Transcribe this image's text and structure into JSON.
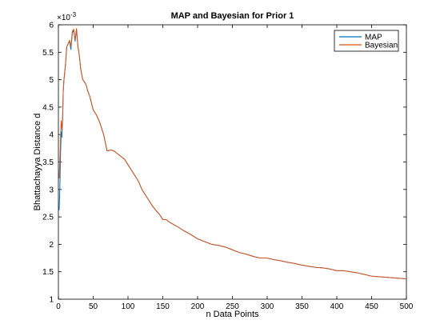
{
  "chart_data": {
    "type": "line",
    "title": "MAP and Bayesian for Prior 1",
    "xlabel": "n Data Points",
    "ylabel": "Bhattachayya Distance d",
    "y_exponent_label": "×10",
    "y_exponent": "-3",
    "xlim": [
      0,
      500
    ],
    "ylim": [
      1,
      6
    ],
    "x_ticks": [
      0,
      50,
      100,
      150,
      200,
      250,
      300,
      350,
      400,
      450,
      500
    ],
    "y_ticks": [
      1,
      1.5,
      2,
      2.5,
      3,
      3.5,
      4,
      4.5,
      5,
      5.5,
      6
    ],
    "y_tick_labels": [
      "1",
      "1.5",
      "2",
      "2.5",
      "3",
      "3.5",
      "4",
      "4.5",
      "5",
      "5.5",
      "6"
    ],
    "grid": false,
    "legend_position": "top-right",
    "series": [
      {
        "name": "MAP",
        "color": "#0072BD",
        "x": [
          1,
          2,
          3,
          4,
          5,
          6,
          7,
          8,
          10,
          12,
          14,
          16,
          18,
          20,
          22,
          24,
          26,
          28,
          30,
          32,
          35,
          38,
          40,
          42,
          45,
          48,
          50,
          55,
          60,
          65,
          70,
          75,
          80,
          85,
          90,
          95,
          100,
          105,
          110,
          115,
          120,
          125,
          130,
          135,
          140,
          145,
          150,
          155,
          160,
          170,
          180,
          190,
          200,
          210,
          220,
          230,
          240,
          250,
          260,
          270,
          280,
          290,
          300,
          310,
          320,
          330,
          340,
          350,
          360,
          370,
          380,
          390,
          400,
          410,
          420,
          430,
          440,
          450,
          460,
          470,
          480,
          490,
          500
        ],
        "values": [
          2.62,
          2.95,
          3.6,
          4.05,
          3.95,
          4.25,
          4.8,
          5.0,
          5.25,
          5.6,
          5.65,
          5.7,
          5.55,
          5.85,
          5.9,
          5.7,
          5.92,
          5.6,
          5.45,
          5.2,
          5.0,
          4.95,
          4.9,
          4.8,
          4.7,
          4.55,
          4.45,
          4.35,
          4.2,
          4.0,
          3.7,
          3.72,
          3.7,
          3.65,
          3.6,
          3.55,
          3.45,
          3.35,
          3.25,
          3.15,
          3.0,
          2.9,
          2.8,
          2.7,
          2.62,
          2.55,
          2.45,
          2.45,
          2.4,
          2.33,
          2.25,
          2.18,
          2.1,
          2.05,
          2.0,
          1.98,
          1.95,
          1.9,
          1.85,
          1.82,
          1.78,
          1.75,
          1.75,
          1.72,
          1.7,
          1.67,
          1.65,
          1.62,
          1.6,
          1.58,
          1.57,
          1.55,
          1.52,
          1.52,
          1.5,
          1.48,
          1.45,
          1.42,
          1.41,
          1.4,
          1.39,
          1.38,
          1.37
        ]
      },
      {
        "name": "Bayesian",
        "color": "#D95319",
        "x": [
          1,
          2,
          3,
          4,
          5,
          6,
          7,
          8,
          10,
          12,
          14,
          16,
          18,
          20,
          22,
          24,
          26,
          28,
          30,
          32,
          35,
          38,
          40,
          42,
          45,
          48,
          50,
          55,
          60,
          65,
          70,
          75,
          80,
          85,
          90,
          95,
          100,
          105,
          110,
          115,
          120,
          125,
          130,
          135,
          140,
          145,
          150,
          155,
          160,
          170,
          180,
          190,
          200,
          210,
          220,
          230,
          240,
          250,
          260,
          270,
          280,
          290,
          300,
          310,
          320,
          330,
          340,
          350,
          360,
          370,
          380,
          390,
          400,
          410,
          420,
          430,
          440,
          450,
          460,
          470,
          480,
          490,
          500
        ],
        "values": [
          3.2,
          3.5,
          3.9,
          4.25,
          4.1,
          4.3,
          4.8,
          5.0,
          5.25,
          5.6,
          5.65,
          5.72,
          5.6,
          5.88,
          5.92,
          5.72,
          5.93,
          5.62,
          5.45,
          5.2,
          5.0,
          4.95,
          4.9,
          4.8,
          4.7,
          4.55,
          4.45,
          4.35,
          4.2,
          4.0,
          3.7,
          3.72,
          3.7,
          3.65,
          3.6,
          3.55,
          3.45,
          3.35,
          3.25,
          3.15,
          3.0,
          2.9,
          2.8,
          2.7,
          2.62,
          2.55,
          2.45,
          2.45,
          2.4,
          2.33,
          2.25,
          2.18,
          2.1,
          2.05,
          2.0,
          1.98,
          1.95,
          1.9,
          1.85,
          1.82,
          1.78,
          1.75,
          1.75,
          1.72,
          1.7,
          1.67,
          1.65,
          1.62,
          1.6,
          1.58,
          1.57,
          1.55,
          1.52,
          1.52,
          1.5,
          1.48,
          1.45,
          1.42,
          1.41,
          1.4,
          1.39,
          1.38,
          1.37
        ]
      }
    ]
  }
}
